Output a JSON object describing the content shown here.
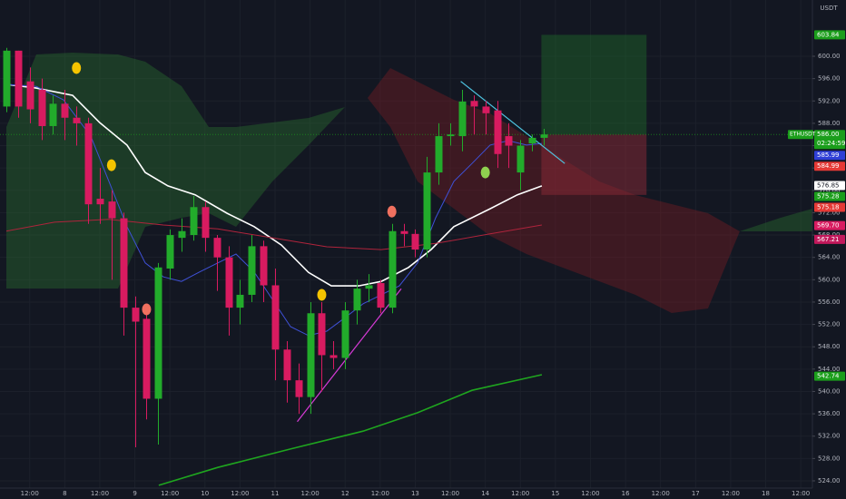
{
  "chart_data": {
    "type": "candlestick",
    "currency": "USDT",
    "xlim": [
      -0.544,
      69.0
    ],
    "ylim": [
      522.7,
      610.07
    ],
    "yticks": [
      {
        "value": 600,
        "label": "600.00"
      },
      {
        "value": 596,
        "label": "596.00"
      },
      {
        "value": 592,
        "label": "592.00"
      },
      {
        "value": 588,
        "label": "588.00"
      },
      {
        "value": 584,
        "label": "584.00"
      },
      {
        "value": 580,
        "label": "580.00"
      },
      {
        "value": 576,
        "label": "576.00"
      },
      {
        "value": 572,
        "label": "572.00"
      },
      {
        "value": 568,
        "label": "568.00"
      },
      {
        "value": 564,
        "label": "564.00"
      },
      {
        "value": 560,
        "label": "560.00"
      },
      {
        "value": 556,
        "label": "556.00"
      },
      {
        "value": 552,
        "label": "552.00"
      },
      {
        "value": 548,
        "label": "548.00"
      },
      {
        "value": 544,
        "label": "544.00"
      },
      {
        "value": 540,
        "label": "540.00"
      },
      {
        "value": 536,
        "label": "536.00"
      },
      {
        "value": 532,
        "label": "532.00"
      },
      {
        "value": 528,
        "label": "528.00"
      },
      {
        "value": 524,
        "label": "524.00"
      }
    ],
    "xticks": [
      {
        "value": 2,
        "label": "12:00"
      },
      {
        "value": 5,
        "label": "8"
      },
      {
        "value": 8,
        "label": "12:00"
      },
      {
        "value": 11,
        "label": "9"
      },
      {
        "value": 14,
        "label": "12:00"
      },
      {
        "value": 17,
        "label": "10"
      },
      {
        "value": 20,
        "label": "12:00"
      },
      {
        "value": 23,
        "label": "11"
      },
      {
        "value": 26,
        "label": "12:00"
      },
      {
        "value": 29,
        "label": "12"
      },
      {
        "value": 32,
        "label": "12:00"
      },
      {
        "value": 35,
        "label": "13"
      },
      {
        "value": 38,
        "label": "12:00"
      },
      {
        "value": 41,
        "label": "14"
      },
      {
        "value": 44,
        "label": "12:00"
      },
      {
        "value": 47,
        "label": "15"
      },
      {
        "value": 50,
        "label": "12:00"
      },
      {
        "value": 53,
        "label": "16"
      },
      {
        "value": 56,
        "label": "12:00"
      },
      {
        "value": 59,
        "label": "17"
      },
      {
        "value": 62,
        "label": "12:00"
      },
      {
        "value": 65,
        "label": "18"
      },
      {
        "value": 68,
        "label": "12:00"
      }
    ],
    "grid": true,
    "up_color": "#22ab2b",
    "down_color": "#d81b60",
    "candles": {
      "open": [
        591,
        601,
        595.5,
        594,
        587.5,
        591.5,
        589,
        588,
        574.5,
        574,
        571,
        555,
        553,
        538.7,
        562,
        567.5,
        568,
        573,
        567.5,
        564,
        555,
        557.3,
        566,
        559,
        547.5,
        542,
        539,
        554,
        546.5,
        546,
        554.5,
        558.4,
        559.4,
        555,
        568.7,
        568.2,
        565.4,
        579.2,
        585.7,
        585.7,
        592,
        591,
        590.3,
        585.7,
        579.2,
        584.4,
        585.4
      ],
      "high": [
        601.5,
        601,
        598,
        596,
        593,
        594,
        591,
        589,
        580,
        576,
        572,
        557,
        555,
        563,
        569,
        571,
        575,
        574,
        568,
        566,
        560,
        568,
        567,
        562,
        549,
        545,
        556,
        556,
        549,
        556,
        560,
        561,
        560,
        570,
        570,
        569,
        582,
        588,
        588,
        594,
        593,
        592,
        592,
        588,
        585,
        586,
        587
      ],
      "low": [
        590,
        589,
        588,
        585,
        586,
        585,
        584,
        570,
        570,
        560,
        550,
        530,
        535,
        530.5,
        560,
        565,
        567,
        565,
        558,
        550,
        552,
        556,
        556,
        542,
        538,
        536,
        536,
        540,
        544,
        544,
        552,
        556,
        554,
        554,
        566,
        564,
        564,
        577,
        584,
        583,
        586,
        586,
        580,
        580,
        576,
        583,
        584
      ],
      "close": [
        601,
        591,
        590.5,
        587.5,
        591.5,
        589,
        588,
        573.5,
        573.5,
        571,
        555,
        552.5,
        538.7,
        562.2,
        568,
        568.7,
        573,
        567.5,
        564,
        555,
        557.3,
        566,
        559,
        547.5,
        542,
        539,
        554,
        546.5,
        546,
        554.5,
        558.4,
        559,
        555,
        568.7,
        568.2,
        565.4,
        579.2,
        585.7,
        586,
        591.9,
        591,
        589.8,
        582.5,
        584,
        584,
        585.4,
        586
      ]
    },
    "series": [
      {
        "color": "#ffffff",
        "x": [
          0,
          2.56,
          5.67,
          8.0,
          10.33,
          11.89,
          13.83,
          16.16,
          18.88,
          21.21,
          23.54,
          25.87,
          27.82,
          30.15,
          32.09,
          34.42,
          36.36,
          38.31,
          41.41,
          43.75,
          45.84
        ],
        "values": [
          594.97,
          594.3,
          593.0,
          588.1,
          584.1,
          579.2,
          576.8,
          575.2,
          571.9,
          569.5,
          566.2,
          561.3,
          558.9,
          558.9,
          559.7,
          562.2,
          565.4,
          569.5,
          572.7,
          575.2,
          576.8
        ]
      },
      {
        "color": "#3f51d8",
        "x": [
          0,
          2.56,
          4.89,
          7.23,
          8.78,
          10.33,
          11.89,
          13.44,
          14.99,
          16.55,
          18.1,
          19.66,
          21.21,
          22.77,
          24.32,
          25.87,
          27.43,
          28.98,
          30.54,
          32.09,
          33.64,
          35.2,
          36.75,
          38.31,
          39.86,
          41.41,
          42.97,
          44.52,
          45.84
        ],
        "values": [
          594.97,
          594.6,
          592.2,
          585.7,
          577.6,
          569.5,
          563.0,
          560.5,
          559.7,
          561.4,
          563.0,
          564.6,
          561.4,
          556.5,
          551.6,
          550.0,
          550.8,
          553.2,
          555.7,
          557.3,
          558.9,
          563.0,
          571.1,
          577.6,
          580.8,
          584.1,
          584.9,
          584.1,
          584.4
        ]
      },
      {
        "color": "#b0243c",
        "x": [
          0,
          4.12,
          8.78,
          13.44,
          18.1,
          22.77,
          27.43,
          32.09,
          36.75,
          41.41,
          45.84
        ],
        "values": [
          568.7,
          570.3,
          570.8,
          569.8,
          569.1,
          567.5,
          565.9,
          565.4,
          566.5,
          568.2,
          569.8
        ]
      },
      {
        "color": "#1fa51f",
        "x": [
          13.05,
          18.1,
          24.32,
          30.54,
          35.2,
          39.86,
          45.84
        ],
        "values": [
          523.2,
          526.4,
          529.7,
          532.9,
          536.2,
          540.2,
          543.0
        ]
      }
    ],
    "clouds": [
      {
        "color": "#2e7d32",
        "x": [
          0,
          2.56,
          5.67,
          9.56,
          11.89,
          15.0,
          17.33,
          19.66,
          22.77,
          25.87,
          28.98,
          30.92
        ],
        "upper": [
          587.33,
          600.32,
          600.65,
          600.32,
          599.03,
          594.64,
          587.33,
          587.33,
          588.15,
          588.96,
          590.91,
          592.53
        ],
        "lower": [
          558.43,
          558.43,
          558.43,
          558.43,
          569.47,
          571.09,
          571.91,
          569.47,
          577.59,
          584.09,
          590.91,
          592.53
        ]
      },
      {
        "color": "#8b1e22",
        "x": [
          30.92,
          32.87,
          35.2,
          38.31,
          41.41,
          44.52,
          47.63,
          50.74,
          53.85,
          56.95,
          60.06,
          62.78
        ],
        "upper": [
          592.53,
          597.89,
          595.45,
          592.21,
          589.77,
          585.71,
          581.65,
          577.59,
          575.15,
          573.53,
          571.91,
          568.66
        ],
        "lower": [
          592.53,
          587.33,
          577.59,
          572.72,
          567.85,
          564.6,
          562.16,
          559.73,
          557.29,
          554.04,
          554.86,
          568.66
        ]
      },
      {
        "color": "#2e7d32",
        "x": [
          62.78,
          66.28,
          69.0
        ],
        "upper": [
          568.66,
          571.09,
          572.72
        ],
        "lower": [
          568.66,
          568.66,
          568.66
        ]
      }
    ],
    "markers": {
      "x": [
        6,
        9,
        12,
        27,
        33,
        41
      ],
      "values": [
        597.9,
        580.5,
        554.7,
        557.3,
        572.2,
        579.2
      ],
      "colors": [
        "#f5c400",
        "#f5c400",
        "#f0705f",
        "#f5c400",
        "#f0705f",
        "#8fd14f"
      ]
    },
    "trendlines": [
      {
        "color": "#4dc3e0",
        "x": [
          38.9,
          47.8
        ],
        "values": [
          595.5,
          580.8
        ]
      },
      {
        "color": "#d63ad6",
        "x": [
          24.9,
          33.8
        ],
        "values": [
          534.6,
          558.4
        ]
      }
    ],
    "position": {
      "x": [
        45.8,
        54.8
      ],
      "entry": 586,
      "target": 603.84,
      "stop": 575.18
    },
    "countdown": "02:24:59",
    "price_labels": [
      {
        "value": 603.84,
        "label": "603.84",
        "color": "#1b9e1b"
      },
      {
        "value": 586,
        "label": "586.00",
        "color": "#1b9e1b",
        "name": "ETHUSDT"
      },
      {
        "value": 585.99,
        "label": "585.99",
        "color": "#2f3fd6"
      },
      {
        "value": 584.99,
        "label": "584.99",
        "color": "#e53935"
      },
      {
        "value": 576.85,
        "label": "576.85",
        "color": "#ffffff"
      },
      {
        "value": 575.28,
        "label": "575.28",
        "color": "#1b9e1b"
      },
      {
        "value": 575.18,
        "label": "575.18",
        "color": "#e53935"
      },
      {
        "value": 569.7,
        "label": "569.70",
        "color": "#d81b60"
      },
      {
        "value": 567.21,
        "label": "567.21",
        "color": "#c2185b"
      },
      {
        "value": 542.74,
        "label": "542.74",
        "color": "#1b9e1b"
      }
    ]
  }
}
